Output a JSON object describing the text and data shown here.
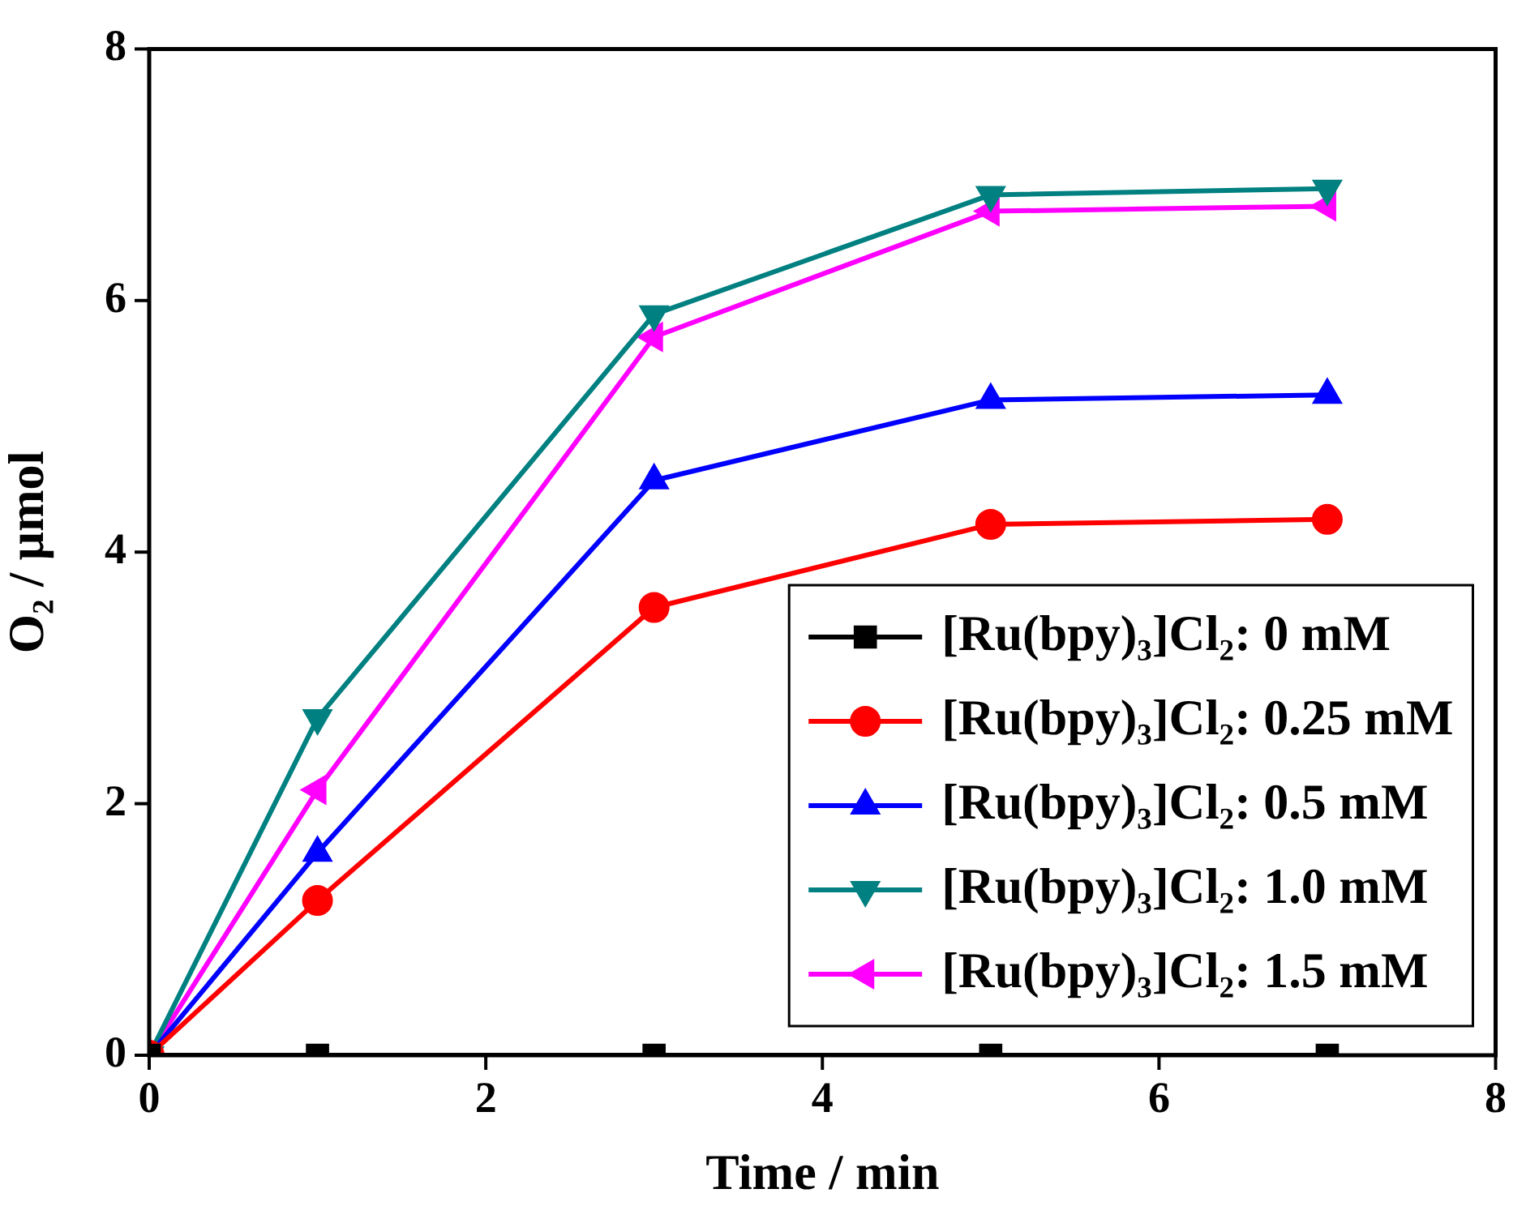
{
  "chart_data": {
    "type": "line",
    "xlabel": "Time / min",
    "ylabel": "O₂ / μmol",
    "x": [
      0,
      1,
      3,
      5,
      7
    ],
    "xlim": [
      0,
      8
    ],
    "xticks": [
      0,
      2,
      4,
      6,
      8
    ],
    "ylim": [
      0,
      8
    ],
    "yticks": [
      0,
      2,
      4,
      6,
      8
    ],
    "grid": false,
    "legend": "bottom right",
    "line_style": "solid",
    "series": [
      {
        "name": "[Ru(bpy)₃]Cl₂: 0 mM",
        "color": "#000000",
        "marker": "square",
        "values": [
          0,
          0,
          0,
          0,
          0
        ]
      },
      {
        "name": "[Ru(bpy)₃]Cl₂: 0.25 mM",
        "color": "#ff0000",
        "marker": "circle",
        "values": [
          0,
          1.23,
          3.56,
          4.22,
          4.26
        ]
      },
      {
        "name": "[Ru(bpy)₃]Cl₂: 0.5 mM",
        "color": "#0000ff",
        "marker": "triangle",
        "values": [
          0,
          1.61,
          4.57,
          5.21,
          5.25
        ]
      },
      {
        "name": "[Ru(bpy)₃]Cl₂: 1.0 mM",
        "color": "#008080",
        "marker": "triangle-down",
        "values": [
          0,
          2.68,
          5.89,
          6.84,
          6.89
        ]
      },
      {
        "name": "[Ru(bpy)₃]Cl₂: 1.5 mM",
        "color": "#ff00ff",
        "marker": "triangle-left",
        "values": [
          0,
          2.11,
          5.71,
          6.71,
          6.75
        ]
      }
    ]
  }
}
